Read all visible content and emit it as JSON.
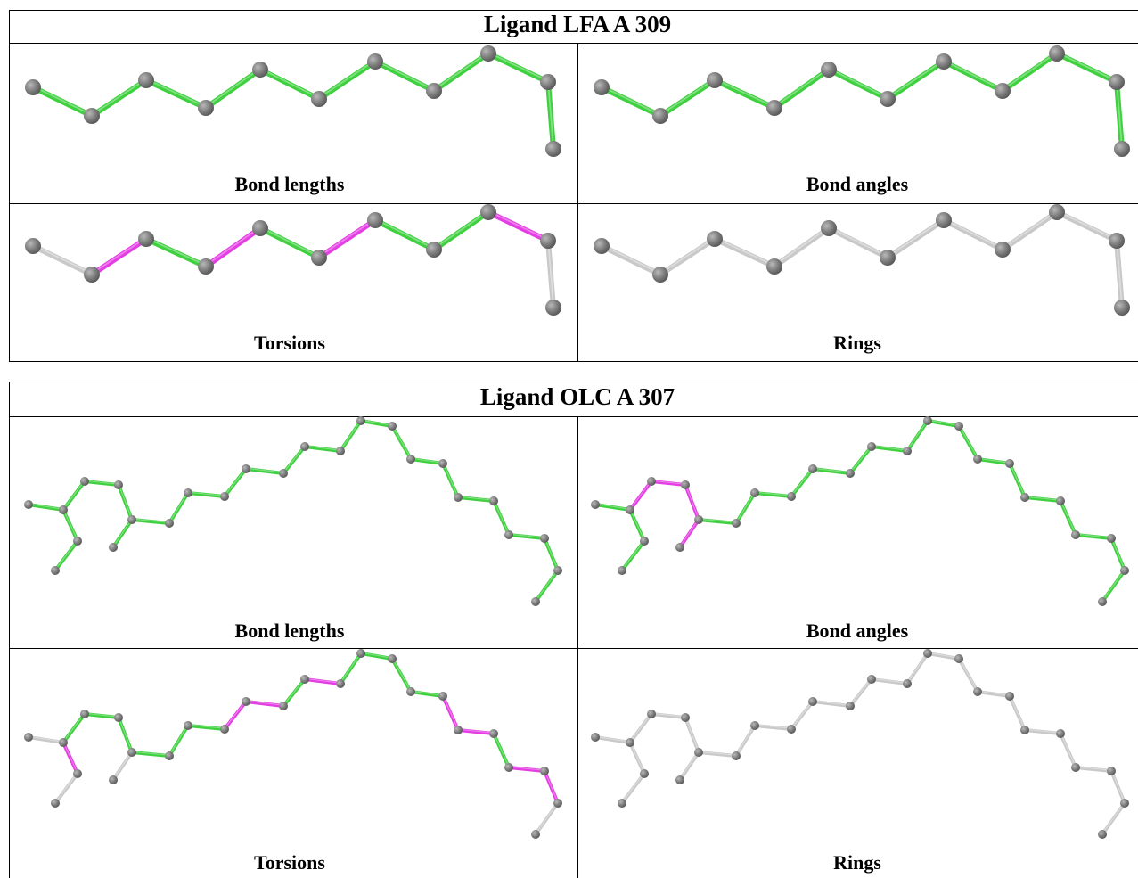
{
  "panels": [
    {
      "title": "Ligand LFA A 309",
      "cells": [
        "Bond lengths",
        "Bond angles",
        "Torsions",
        "Rings"
      ]
    },
    {
      "title": "Ligand OLC A 307",
      "cells": [
        "Bond lengths",
        "Bond angles",
        "Torsions",
        "Rings"
      ]
    }
  ]
}
